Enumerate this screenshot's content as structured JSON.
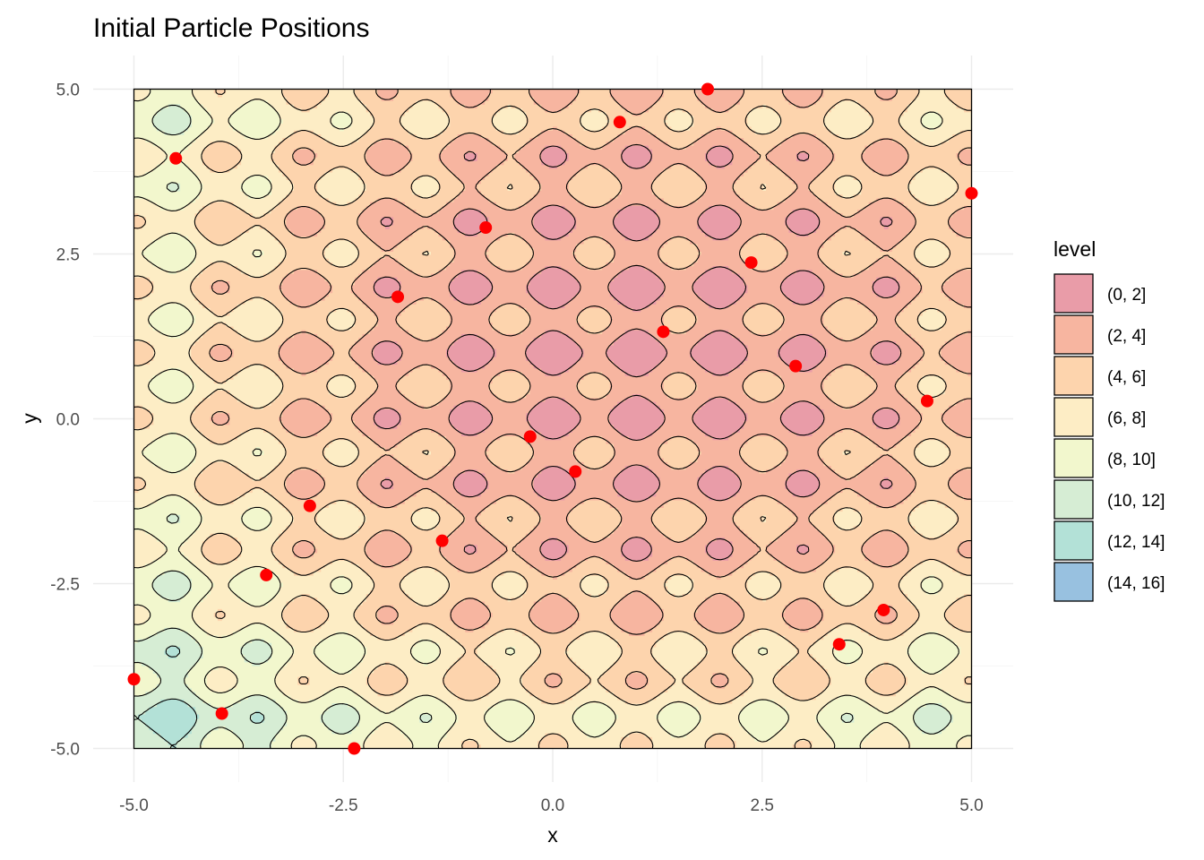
{
  "chart_data": {
    "type": "contour",
    "title": "Initial Particle Positions",
    "xlabel": "x",
    "ylabel": "y",
    "xlim": [
      -5.5,
      5.5
    ],
    "ylim": [
      -5.4,
      5.4
    ],
    "field_domain": {
      "x": [
        -5,
        5
      ],
      "y": [
        -5,
        5
      ]
    },
    "x_ticks": [
      {
        "value": -5.0,
        "label": "-5.0"
      },
      {
        "value": -2.5,
        "label": "-2.5"
      },
      {
        "value": 0.0,
        "label": "0.0"
      },
      {
        "value": 2.5,
        "label": "2.5"
      },
      {
        "value": 5.0,
        "label": "5.0"
      }
    ],
    "y_ticks": [
      {
        "value": 5.0,
        "label": "5.0"
      },
      {
        "value": 2.5,
        "label": "2.5"
      },
      {
        "value": 0.0,
        "label": "0.0"
      },
      {
        "value": -2.5,
        "label": "-2.5"
      },
      {
        "value": -5.0,
        "label": "-5.0"
      }
    ],
    "field_minimum": {
      "x": 1.0,
      "y": 1.0
    },
    "grid": true,
    "legend": {
      "title": "level",
      "position": "right",
      "entries": [
        {
          "label": "(0, 2]",
          "color": "#e99ca8"
        },
        {
          "label": "(2, 4]",
          "color": "#f7b5a0"
        },
        {
          "label": "(4, 6]",
          "color": "#fdd4ad"
        },
        {
          "label": "(6, 8]",
          "color": "#fdedc5"
        },
        {
          "label": "(8, 10]",
          "color": "#f2f7cd"
        },
        {
          "label": "(10, 12]",
          "color": "#d6edd4"
        },
        {
          "label": "(12, 14]",
          "color": "#b3e1d7"
        },
        {
          "label": "(14, 16]",
          "color": "#98c1e0"
        }
      ]
    },
    "points_color": "#ff0000",
    "points": [
      {
        "x": 1.85,
        "y": 5.0
      },
      {
        "x": 0.8,
        "y": 4.5
      },
      {
        "x": -4.5,
        "y": 3.95
      },
      {
        "x": 5.0,
        "y": 3.42
      },
      {
        "x": -0.8,
        "y": 2.9
      },
      {
        "x": 2.37,
        "y": 2.37
      },
      {
        "x": -1.85,
        "y": 1.85
      },
      {
        "x": 1.32,
        "y": 1.32
      },
      {
        "x": 2.9,
        "y": 0.8
      },
      {
        "x": 4.47,
        "y": 0.27
      },
      {
        "x": -0.27,
        "y": -0.27
      },
      {
        "x": 0.27,
        "y": -0.8
      },
      {
        "x": -2.9,
        "y": -1.32
      },
      {
        "x": -1.32,
        "y": -1.85
      },
      {
        "x": -3.42,
        "y": -2.37
      },
      {
        "x": 3.95,
        "y": -2.9
      },
      {
        "x": 3.42,
        "y": -3.42
      },
      {
        "x": -5.0,
        "y": -3.95
      },
      {
        "x": -3.95,
        "y": -4.47
      },
      {
        "x": -2.37,
        "y": -5.0
      }
    ]
  }
}
